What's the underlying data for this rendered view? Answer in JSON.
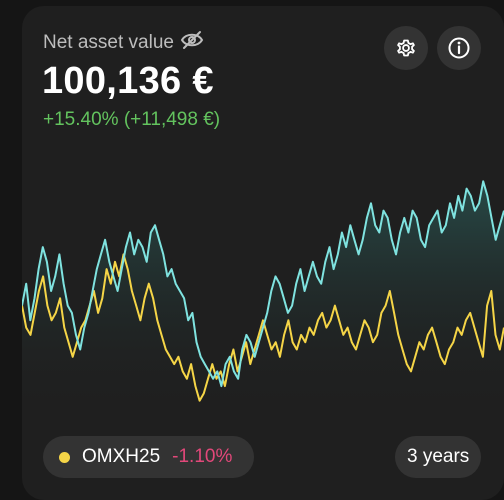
{
  "header": {
    "title": "Net asset value",
    "amount": "100,136 €",
    "change": "+15.40% (+11,498 €)"
  },
  "benchmark": {
    "name": "OMXH25",
    "change": "-1.10%",
    "dot_color": "#f5d547"
  },
  "period": {
    "label": "3 years"
  },
  "icons": {
    "visibility": "eye-off-icon",
    "settings": "gear-icon",
    "info": "info-icon"
  },
  "colors": {
    "positive": "#63c35e",
    "negative": "#e2487a",
    "portfolio_line": "#7fe3e0",
    "benchmark_line": "#f5d547"
  },
  "chart_data": {
    "type": "line",
    "ylim": [
      -14,
      18
    ],
    "series": [
      {
        "values": [
          0,
          3,
          -2,
          1,
          5,
          8,
          6,
          2,
          4,
          7,
          3,
          0,
          -1,
          -4,
          -6,
          -3,
          -1,
          2,
          5,
          7,
          9,
          6,
          4,
          2,
          5,
          8,
          10,
          7,
          9,
          8,
          6,
          10,
          11,
          9,
          7,
          4,
          5,
          3,
          2,
          1,
          -2,
          -1,
          -5,
          -7,
          -8,
          -9,
          -10,
          -9,
          -11,
          -8,
          -7,
          -9,
          -10,
          -6,
          -4,
          -5,
          -7,
          -5,
          -3,
          -1,
          2,
          4,
          3,
          1,
          -1,
          0,
          3,
          5,
          2,
          4,
          6,
          4,
          3,
          6,
          8,
          5,
          7,
          10,
          8,
          11,
          9,
          7,
          9,
          12,
          14,
          11,
          10,
          13,
          12,
          9,
          7,
          10,
          12,
          10,
          13,
          12,
          9,
          8,
          11,
          12,
          13,
          10,
          11,
          14,
          12,
          15,
          13,
          16,
          15,
          13,
          14,
          17,
          15,
          12,
          9,
          11,
          13
        ]
      },
      {
        "values": [
          0,
          -3,
          -4,
          -1,
          2,
          4,
          0,
          -2,
          -1,
          1,
          -3,
          -5,
          -7,
          -5,
          -3,
          -2,
          0,
          2,
          -1,
          1,
          5,
          3,
          6,
          4,
          7,
          5,
          2,
          0,
          -2,
          1,
          3,
          1,
          -2,
          -4,
          -6,
          -7,
          -8,
          -7,
          -9,
          -10,
          -8,
          -11,
          -13,
          -12,
          -10,
          -8,
          -10,
          -9,
          -11,
          -8,
          -6,
          -9,
          -7,
          -5,
          -8,
          -6,
          -4,
          -2,
          -4,
          -6,
          -5,
          -7,
          -4,
          -2,
          -5,
          -6,
          -4,
          -5,
          -3,
          -4,
          -2,
          -1,
          -3,
          -2,
          0,
          -2,
          -4,
          -3,
          -5,
          -6,
          -4,
          -2,
          -3,
          -5,
          -4,
          -1,
          0,
          2,
          -1,
          -4,
          -6,
          -8,
          -9,
          -7,
          -5,
          -6,
          -4,
          -3,
          -5,
          -7,
          -8,
          -6,
          -5,
          -3,
          -4,
          -2,
          -1,
          -3,
          -5,
          -7,
          0,
          2,
          -4,
          -6,
          -3
        ]
      }
    ]
  }
}
